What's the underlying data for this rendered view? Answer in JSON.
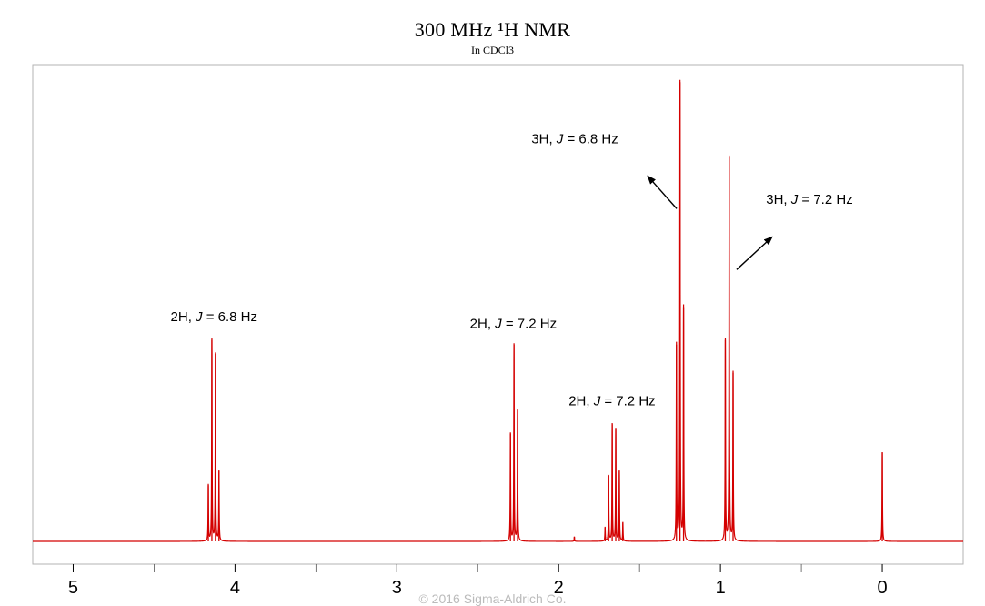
{
  "chart_data": {
    "type": "line",
    "title": "300 MHz ¹H NMR",
    "subtitle": "In CDCl3",
    "footer": "© 2016 Sigma-Aldrich Co.",
    "xlabel": "",
    "ylabel": "",
    "x_reversed": true,
    "xlim": [
      5.25,
      -0.5
    ],
    "ylim": [
      0,
      1
    ],
    "x_ticks": [
      5,
      4,
      3,
      2,
      1,
      0
    ],
    "x_minor_ticks": [
      4.5,
      3.5,
      2.5,
      1.5,
      0.5
    ],
    "line_color": "#d40000",
    "baseline": 0.0,
    "peaks": [
      {
        "ppm": 4.165,
        "height": 0.12
      },
      {
        "ppm": 4.143,
        "height": 0.43
      },
      {
        "ppm": 4.121,
        "height": 0.4
      },
      {
        "ppm": 4.099,
        "height": 0.15
      },
      {
        "ppm": 2.298,
        "height": 0.23
      },
      {
        "ppm": 2.276,
        "height": 0.42
      },
      {
        "ppm": 2.254,
        "height": 0.28
      },
      {
        "ppm": 1.903,
        "height": 0.01
      },
      {
        "ppm": 1.713,
        "height": 0.03
      },
      {
        "ppm": 1.691,
        "height": 0.14
      },
      {
        "ppm": 1.669,
        "height": 0.25
      },
      {
        "ppm": 1.647,
        "height": 0.24
      },
      {
        "ppm": 1.625,
        "height": 0.15
      },
      {
        "ppm": 1.603,
        "height": 0.04
      },
      {
        "ppm": 1.272,
        "height": 0.42
      },
      {
        "ppm": 1.25,
        "height": 0.98
      },
      {
        "ppm": 1.228,
        "height": 0.5
      },
      {
        "ppm": 0.97,
        "height": 0.43
      },
      {
        "ppm": 0.946,
        "height": 0.82
      },
      {
        "ppm": 0.922,
        "height": 0.36
      },
      {
        "ppm": 0.0,
        "height": 0.19
      }
    ],
    "annotations": [
      {
        "prefix": "2H, ",
        "italic": "J",
        "suffix": " = 6.8 Hz",
        "ppm": 4.13,
        "height": 0.47
      },
      {
        "prefix": "2H, ",
        "italic": "J",
        "suffix": " = 7.2 Hz",
        "ppm": 2.28,
        "height": 0.455
      },
      {
        "prefix": "2H, ",
        "italic": "J",
        "suffix": " = 7.2 Hz",
        "ppm": 1.67,
        "height": 0.29
      },
      {
        "prefix": "3H, ",
        "italic": "J",
        "suffix": " = 6.8 Hz",
        "ppm": 1.9,
        "height": 0.85
      },
      {
        "prefix": "3H, ",
        "italic": "J",
        "suffix": " = 7.2 Hz",
        "ppm": 0.45,
        "height": 0.72
      }
    ],
    "arrows": [
      {
        "from_ppm": 1.27,
        "from_h": 0.71,
        "to_ppm": 1.45,
        "to_h": 0.78
      },
      {
        "from_ppm": 0.9,
        "from_h": 0.58,
        "to_ppm": 0.68,
        "to_h": 0.65
      }
    ]
  }
}
